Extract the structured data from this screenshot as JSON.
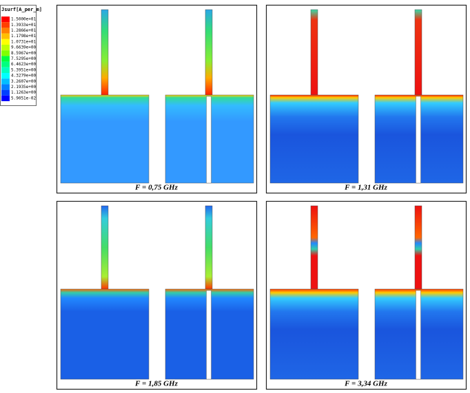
{
  "legend": {
    "title": "Jsurf[A_per_m]",
    "items": [
      {
        "label": "1.5000e+01",
        "color": "#ff0000"
      },
      {
        "label": "1.3933e+01",
        "color": "#ff4000"
      },
      {
        "label": "1.2866e+01",
        "color": "#ff8000"
      },
      {
        "label": "1.1798e+01",
        "color": "#ffbf00"
      },
      {
        "label": "1.0731e+01",
        "color": "#ffff00"
      },
      {
        "label": "9.6639e+00",
        "color": "#bfff00"
      },
      {
        "label": "8.5967e+00",
        "color": "#80ff00"
      },
      {
        "label": "7.5295e+00",
        "color": "#00ff40"
      },
      {
        "label": "6.4623e+00",
        "color": "#00ff80"
      },
      {
        "label": "5.3951e+00",
        "color": "#00ffbf"
      },
      {
        "label": "4.3279e+00",
        "color": "#00ffff"
      },
      {
        "label": "3.2607e+00",
        "color": "#00bfff"
      },
      {
        "label": "2.1935e+00",
        "color": "#0080ff"
      },
      {
        "label": "1.1263e+00",
        "color": "#0040ff"
      },
      {
        "label": "5.9051e-02",
        "color": "#0000ff"
      }
    ]
  },
  "panels": [
    {
      "caption": "F = 0,75 GHz"
    },
    {
      "caption": "F = 1,31 GHz"
    },
    {
      "caption": "F = 1,85 GHz"
    },
    {
      "caption": "F = 3,34 GHz"
    }
  ]
}
